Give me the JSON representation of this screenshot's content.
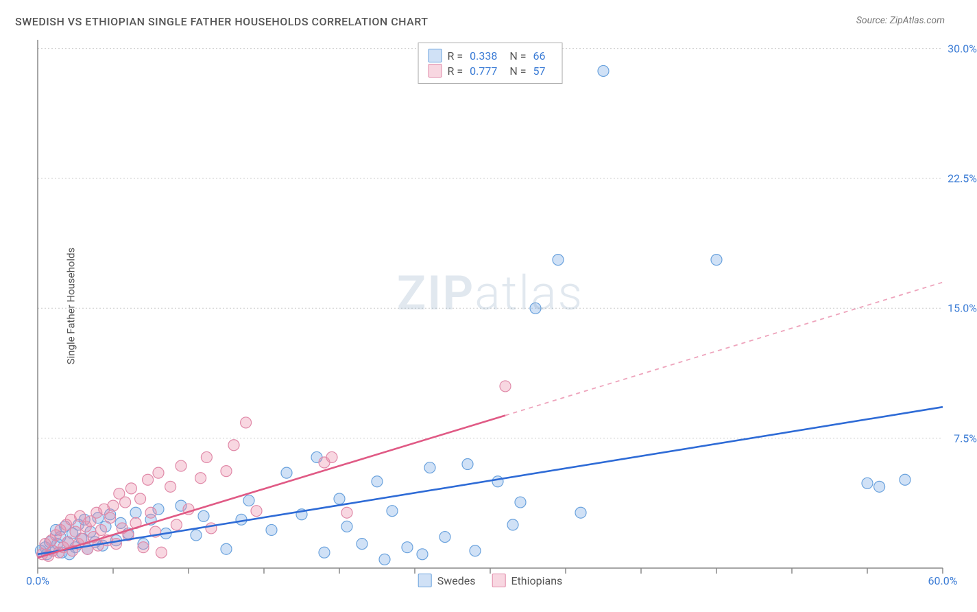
{
  "title": "SWEDISH VS ETHIOPIAN SINGLE FATHER HOUSEHOLDS CORRELATION CHART",
  "source_label": "Source: ZipAtlas.com",
  "ylabel": "Single Father Households",
  "watermark": {
    "bold": "ZIP",
    "light": "atlas"
  },
  "chart": {
    "type": "scatter",
    "background_color": "#ffffff",
    "grid_color": "#cccccc",
    "grid_dash": "2,3",
    "axis_color": "#888888",
    "label_color": "#3a7bd5",
    "xlim": [
      0,
      60
    ],
    "ylim": [
      0,
      30.5
    ],
    "x_tick_start": 0,
    "x_tick_step": 5,
    "y_tick_start": 0,
    "y_tick_step": 7.5,
    "x_end_label": "60.0%",
    "x_start_label": "0.0%",
    "y_labels": [
      "7.5%",
      "15.0%",
      "22.5%",
      "30.0%"
    ],
    "marker_radius": 8,
    "marker_stroke_width": 1.2,
    "trend_line_width": 2.6,
    "series": [
      {
        "name": "Swedes",
        "fill": "rgba(120,170,230,0.35)",
        "stroke": "#6aa2dd",
        "trend_color": "#2e6bd6",
        "trend_dash_color": "#2e6bd6",
        "R": "0.338",
        "N": "66",
        "trend": {
          "x1": 0,
          "y1": 0.8,
          "x2": 60,
          "y2": 9.3,
          "x_solid_end": 60
        },
        "points": [
          [
            0.2,
            1.0
          ],
          [
            0.5,
            1.2
          ],
          [
            0.6,
            0.8
          ],
          [
            0.8,
            1.5
          ],
          [
            1.0,
            1.0
          ],
          [
            1.2,
            2.2
          ],
          [
            1.3,
            1.4
          ],
          [
            1.5,
            1.8
          ],
          [
            1.6,
            0.9
          ],
          [
            1.8,
            2.4
          ],
          [
            2.0,
            1.5
          ],
          [
            2.1,
            0.8
          ],
          [
            2.3,
            2.0
          ],
          [
            2.5,
            1.2
          ],
          [
            2.7,
            2.5
          ],
          [
            2.9,
            1.7
          ],
          [
            3.1,
            2.8
          ],
          [
            3.3,
            1.1
          ],
          [
            3.5,
            2.1
          ],
          [
            3.8,
            1.5
          ],
          [
            4.0,
            2.9
          ],
          [
            4.3,
            1.3
          ],
          [
            4.5,
            2.4
          ],
          [
            4.8,
            3.1
          ],
          [
            5.2,
            1.6
          ],
          [
            5.5,
            2.6
          ],
          [
            6.0,
            2.0
          ],
          [
            6.5,
            3.2
          ],
          [
            7.0,
            1.4
          ],
          [
            7.5,
            2.8
          ],
          [
            8.0,
            3.4
          ],
          [
            8.5,
            2.0
          ],
          [
            9.5,
            3.6
          ],
          [
            10.5,
            1.9
          ],
          [
            11.0,
            3.0
          ],
          [
            12.5,
            1.1
          ],
          [
            13.5,
            2.8
          ],
          [
            14.0,
            3.9
          ],
          [
            15.5,
            2.2
          ],
          [
            16.5,
            5.5
          ],
          [
            17.5,
            3.1
          ],
          [
            18.5,
            6.4
          ],
          [
            19.0,
            0.9
          ],
          [
            20.0,
            4.0
          ],
          [
            20.5,
            2.4
          ],
          [
            21.5,
            1.4
          ],
          [
            22.5,
            5.0
          ],
          [
            23.0,
            0.5
          ],
          [
            23.5,
            3.3
          ],
          [
            24.5,
            1.2
          ],
          [
            25.5,
            0.8
          ],
          [
            26.0,
            5.8
          ],
          [
            27.0,
            1.8
          ],
          [
            28.5,
            6.0
          ],
          [
            29.0,
            1.0
          ],
          [
            30.5,
            5.0
          ],
          [
            31.5,
            2.5
          ],
          [
            32.0,
            3.8
          ],
          [
            33.0,
            15.0
          ],
          [
            34.5,
            17.8
          ],
          [
            36.0,
            3.2
          ],
          [
            37.5,
            28.7
          ],
          [
            45.0,
            17.8
          ],
          [
            55.0,
            4.9
          ],
          [
            55.8,
            4.7
          ],
          [
            57.5,
            5.1
          ]
        ]
      },
      {
        "name": "Ethiopians",
        "fill": "rgba(235,140,170,0.35)",
        "stroke": "#e089a8",
        "trend_color": "#e05a85",
        "trend_dash_color": "rgba(224,90,133,0.55)",
        "R": "0.777",
        "N": "57",
        "trend": {
          "x1": 0,
          "y1": 0.6,
          "x2": 60,
          "y2": 16.5,
          "x_solid_end": 31
        },
        "points": [
          [
            0.3,
            0.8
          ],
          [
            0.5,
            1.4
          ],
          [
            0.7,
            0.7
          ],
          [
            0.9,
            1.6
          ],
          [
            1.0,
            1.0
          ],
          [
            1.2,
            1.9
          ],
          [
            1.4,
            0.9
          ],
          [
            1.5,
            2.2
          ],
          [
            1.7,
            1.2
          ],
          [
            1.9,
            2.5
          ],
          [
            2.0,
            1.5
          ],
          [
            2.2,
            2.8
          ],
          [
            2.3,
            1.0
          ],
          [
            2.5,
            2.1
          ],
          [
            2.7,
            1.4
          ],
          [
            2.8,
            3.0
          ],
          [
            3.0,
            1.7
          ],
          [
            3.2,
            2.4
          ],
          [
            3.3,
            1.1
          ],
          [
            3.5,
            2.7
          ],
          [
            3.7,
            1.8
          ],
          [
            3.9,
            3.2
          ],
          [
            4.0,
            1.3
          ],
          [
            4.2,
            2.2
          ],
          [
            4.4,
            3.4
          ],
          [
            4.6,
            1.6
          ],
          [
            4.8,
            2.9
          ],
          [
            5.0,
            3.6
          ],
          [
            5.2,
            1.4
          ],
          [
            5.4,
            4.3
          ],
          [
            5.6,
            2.3
          ],
          [
            5.8,
            3.8
          ],
          [
            6.0,
            1.9
          ],
          [
            6.2,
            4.6
          ],
          [
            6.5,
            2.6
          ],
          [
            6.8,
            4.0
          ],
          [
            7.0,
            1.2
          ],
          [
            7.3,
            5.1
          ],
          [
            7.5,
            3.2
          ],
          [
            7.8,
            2.1
          ],
          [
            8.0,
            5.5
          ],
          [
            8.2,
            0.9
          ],
          [
            8.8,
            4.7
          ],
          [
            9.2,
            2.5
          ],
          [
            9.5,
            5.9
          ],
          [
            10.0,
            3.4
          ],
          [
            10.8,
            5.2
          ],
          [
            11.2,
            6.4
          ],
          [
            11.5,
            2.3
          ],
          [
            12.5,
            5.6
          ],
          [
            13.0,
            7.1
          ],
          [
            13.8,
            8.4
          ],
          [
            14.5,
            3.3
          ],
          [
            19.0,
            6.1
          ],
          [
            19.5,
            6.4
          ],
          [
            20.5,
            3.2
          ],
          [
            31.0,
            10.5
          ]
        ]
      }
    ]
  },
  "legend": {
    "series1_label": "Swedes",
    "series2_label": "Ethiopians"
  }
}
